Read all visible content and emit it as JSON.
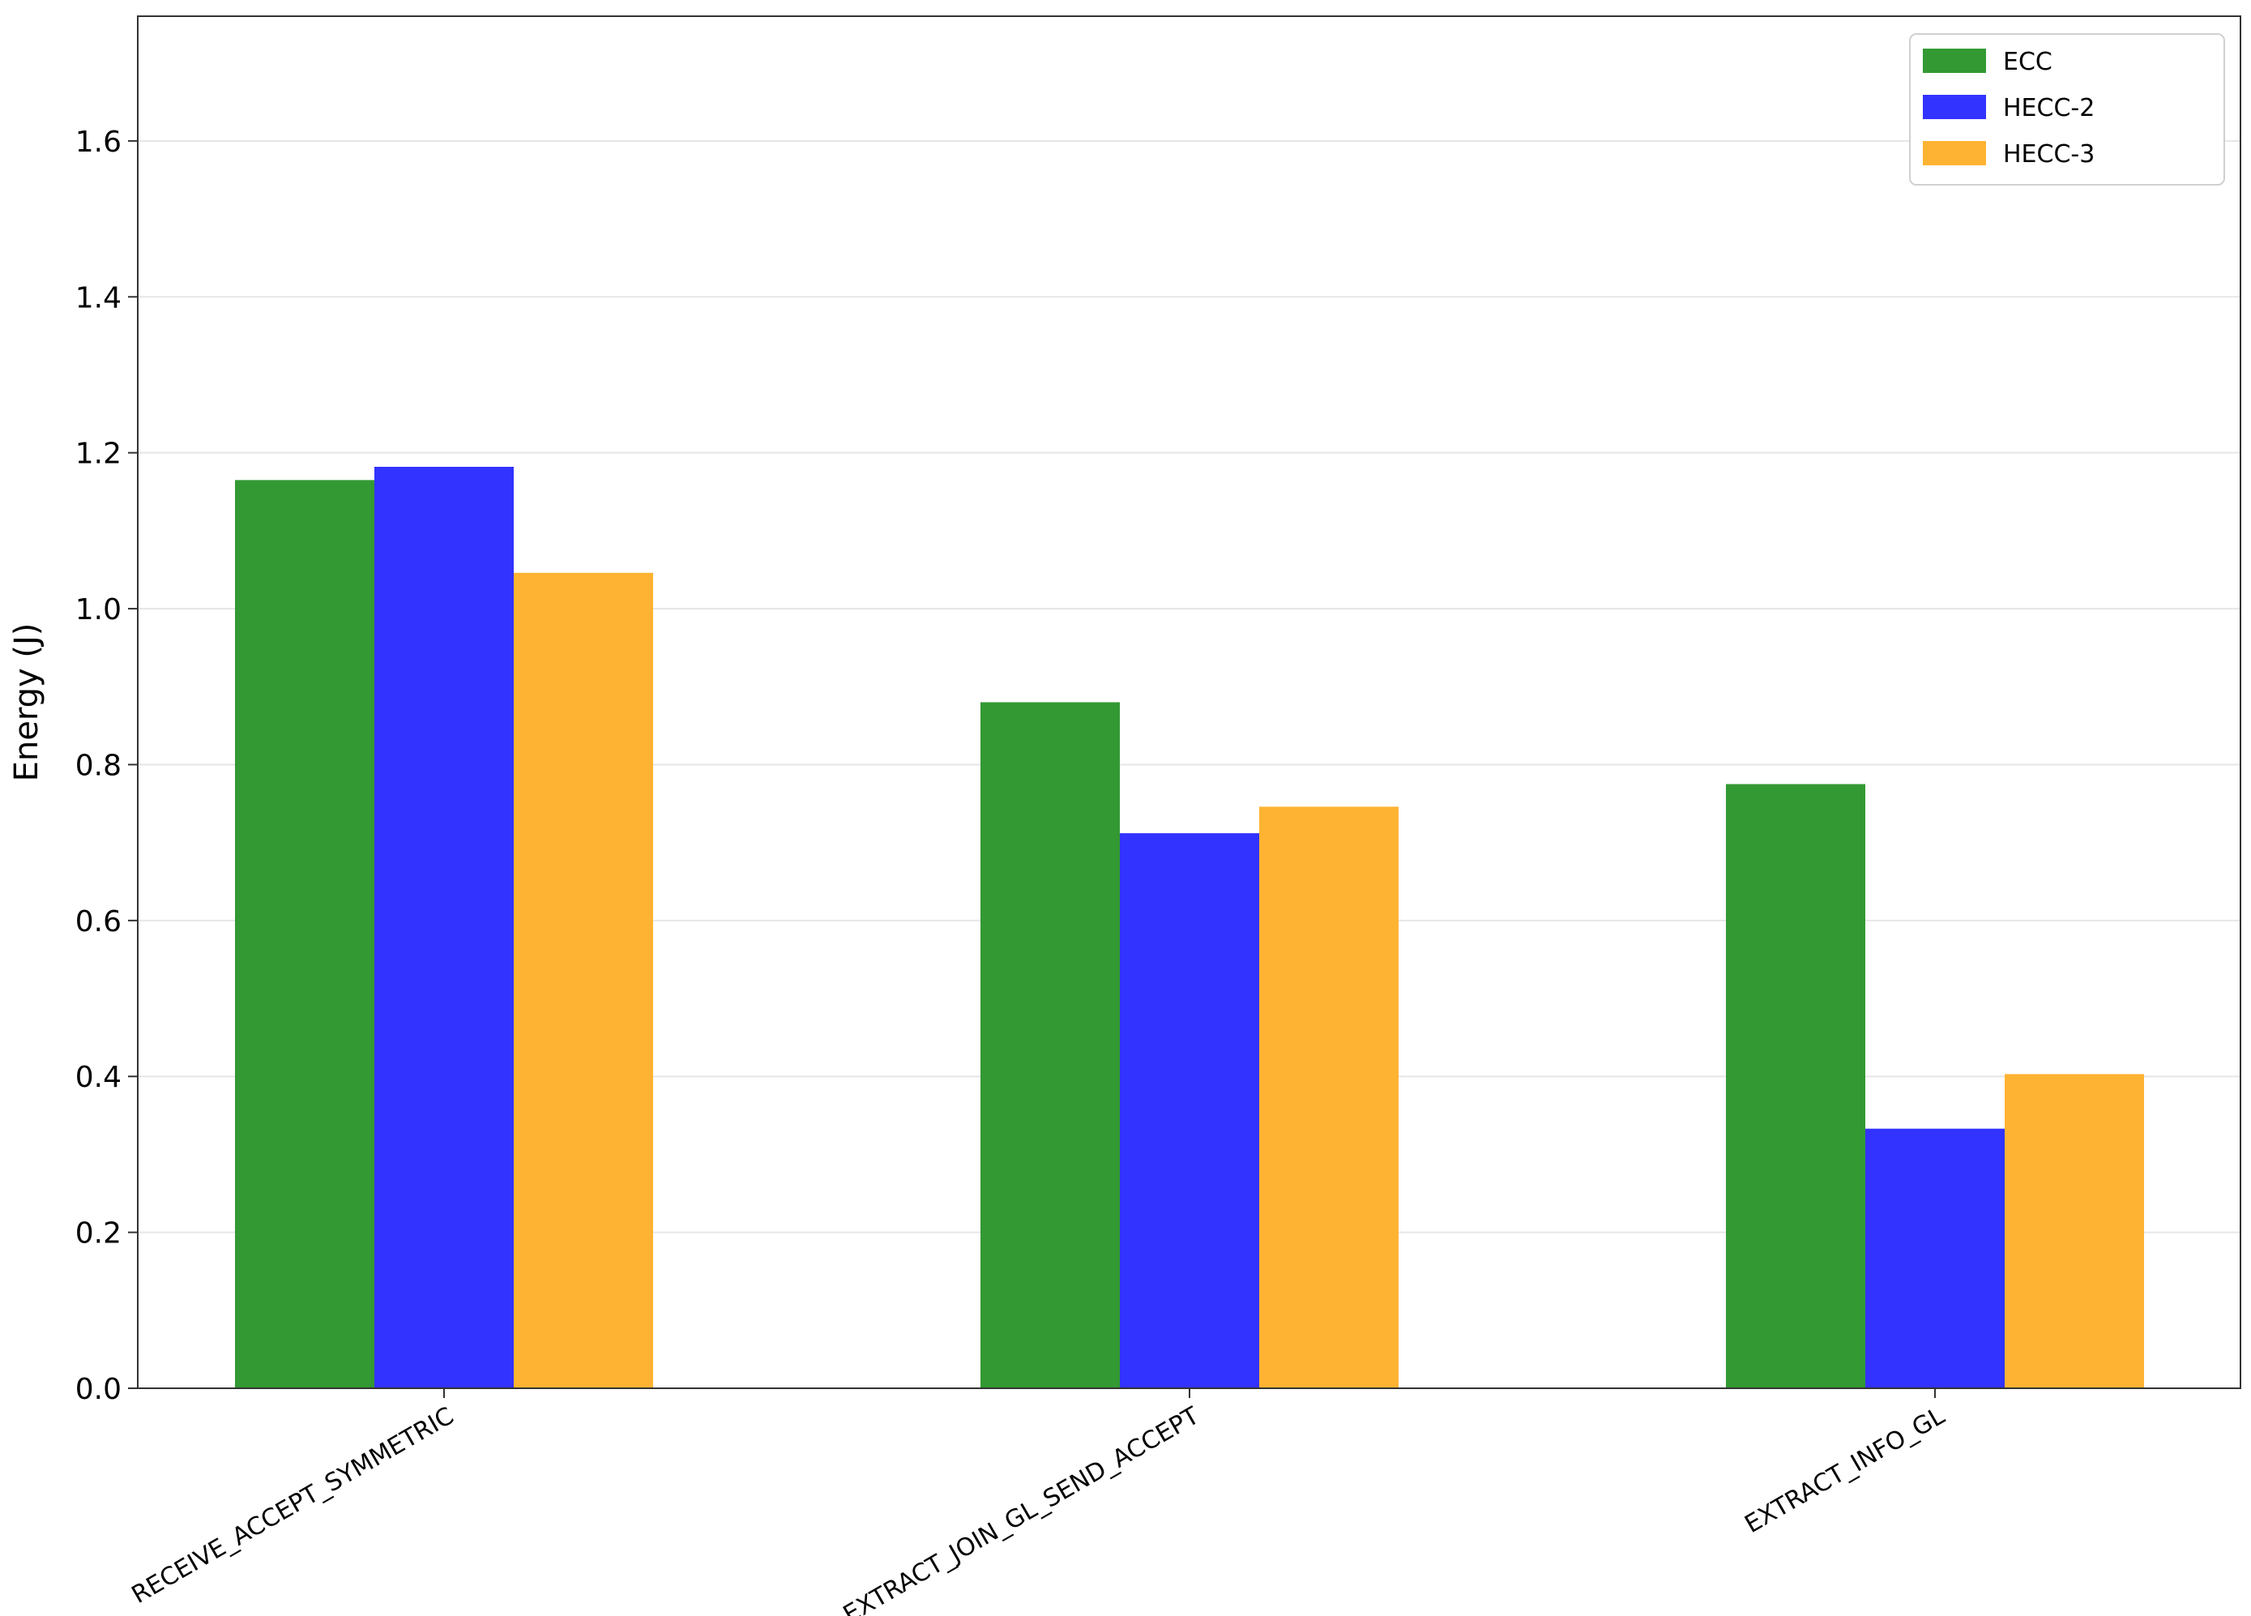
{
  "chart_data": {
    "type": "bar",
    "title": "",
    "xlabel": "",
    "ylabel": "Energy (J)",
    "ylim": [
      0,
      1.76
    ],
    "yticks": [
      0.0,
      0.2,
      0.4,
      0.6,
      0.8,
      1.0,
      1.2,
      1.4,
      1.6
    ],
    "ytick_labels": [
      "0.0",
      "0.2",
      "0.4",
      "0.6",
      "0.8",
      "1.0",
      "1.2",
      "1.4",
      "1.6"
    ],
    "grid": true,
    "legend_position": "top-right",
    "categories": [
      "RECEIVE_ACCEPT_SYMMETRIC",
      "EXTRACT_JOIN_GL_SEND_ACCEPT",
      "EXTRACT_INFO_GL"
    ],
    "series": [
      {
        "name": "ECC",
        "color": "#339933",
        "values": [
          1.165,
          0.88,
          0.775
        ]
      },
      {
        "name": "HECC-2",
        "color": "#3333ff",
        "values": [
          1.182,
          0.712,
          0.333
        ]
      },
      {
        "name": "HECC-3",
        "color": "#ffb333",
        "values": [
          1.046,
          0.746,
          0.403
        ]
      }
    ]
  }
}
